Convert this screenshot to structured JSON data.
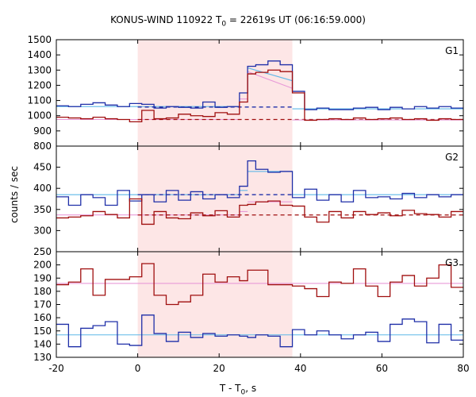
{
  "chart_data": {
    "title": "KONUS-WIND 110922 T0 = 22619s UT (06:16:59.000)",
    "title_parts": {
      "prefix": "KONUS-WIND 110922 T",
      "sub": "0",
      "suffix": " = 22619s UT (06:16:59.000)"
    },
    "xlabel": "T - T0, s",
    "xlabel_parts": {
      "prefix": "T - T",
      "sub": "0",
      "suffix": ", s"
    },
    "ylabel": "counts / sec",
    "type": "line",
    "xlim": [
      -20,
      80
    ],
    "x_ticks": [
      -20,
      0,
      20,
      40,
      60,
      80
    ],
    "highlight_interval": [
      0,
      38
    ],
    "colors": {
      "highlight": "#fde6e6",
      "blue_step": "#1f2fa8",
      "red_step": "#a00f0f",
      "cyan_fit": "#5fb8e8",
      "pink_fit": "#e89ad8",
      "blue_dashed": "#1f2fa8",
      "red_dashed": "#a00f0f"
    },
    "panels": [
      {
        "id": "G1",
        "label": "G1",
        "ylim": [
          800,
          1500
        ],
        "yticks": [
          800,
          900,
          1000,
          1100,
          1200,
          1300,
          1400,
          1500
        ],
        "bin_edges": [
          -20,
          -17,
          -14,
          -11,
          -8,
          -5,
          -2,
          1,
          4,
          7,
          10,
          13,
          16,
          19,
          22,
          25,
          27,
          29,
          32,
          35,
          38,
          41,
          44,
          47,
          50,
          53,
          56,
          59,
          62,
          65,
          68,
          71,
          74,
          77,
          80
        ],
        "series": [
          {
            "name": "",
            "color_key": "blue_step",
            "values": [
              1065,
              1060,
              1075,
              1085,
              1070,
              1060,
              1080,
              1075,
              1050,
              1060,
              1055,
              1050,
              1090,
              1055,
              1060,
              1150,
              1325,
              1335,
              1360,
              1335,
              1160,
              1040,
              1050,
              1040,
              1040,
              1050,
              1055,
              1040,
              1055,
              1045,
              1060,
              1050,
              1060,
              1050
            ]
          },
          {
            "name": "",
            "color_key": "red_step",
            "values": [
              990,
              985,
              980,
              990,
              980,
              975,
              960,
              1035,
              980,
              985,
              1010,
              1000,
              995,
              1020,
              1010,
              1090,
              1275,
              1285,
              1300,
              1290,
              1150,
              970,
              975,
              980,
              975,
              985,
              975,
              980,
              985,
              975,
              980,
              970,
              980,
              975
            ]
          }
        ],
        "fits": [
          {
            "color_key": "cyan_fit",
            "dashed": false,
            "segments": [
              [
                -20,
                1060,
                25,
                1060
              ],
              [
                25,
                1150,
                27,
                1150
              ],
              [
                27,
                1315,
                38,
                1230
              ]
            ]
          },
          {
            "color_key": "pink_fit",
            "dashed": false,
            "segments": [
              [
                -20,
                975,
                25,
                975
              ],
              [
                25,
                1110,
                27,
                1110
              ],
              [
                27,
                1290,
                38,
                1180
              ]
            ]
          },
          {
            "color_key": "blue_dashed",
            "dashed": true,
            "segments": [
              [
                0,
                1057,
                38,
                1057
              ]
            ]
          },
          {
            "color_key": "red_dashed",
            "dashed": true,
            "segments": [
              [
                0,
                975,
                80,
                975
              ]
            ]
          },
          {
            "color_key": "cyan_fit",
            "dashed": false,
            "segments": [
              [
                38,
                1045,
                80,
                1045
              ]
            ]
          },
          {
            "color_key": "pink_fit",
            "dashed": false,
            "segments": [
              [
                38,
                972,
                80,
                972
              ]
            ]
          }
        ]
      },
      {
        "id": "G2",
        "label": "G2",
        "ylim": [
          250,
          500
        ],
        "yticks": [
          250,
          300,
          350,
          400,
          450
        ],
        "bin_edges": [
          -20,
          -17,
          -14,
          -11,
          -8,
          -5,
          -2,
          1,
          4,
          7,
          10,
          13,
          16,
          19,
          22,
          25,
          27,
          29,
          32,
          35,
          38,
          41,
          44,
          47,
          50,
          53,
          56,
          59,
          62,
          65,
          68,
          71,
          74,
          77,
          80
        ],
        "series": [
          {
            "name": "",
            "color_key": "blue_step",
            "values": [
              380,
              360,
              385,
              378,
              360,
              395,
              370,
              385,
              368,
              395,
              372,
              392,
              375,
              385,
              378,
              405,
              465,
              445,
              438,
              440,
              378,
              398,
              372,
              385,
              368,
              395,
              378,
              380,
              375,
              388,
              378,
              385,
              380,
              385
            ]
          },
          {
            "name": "",
            "color_key": "red_step",
            "values": [
              330,
              332,
              335,
              345,
              338,
              330,
              375,
              315,
              345,
              330,
              328,
              342,
              335,
              347,
              332,
              360,
              362,
              368,
              370,
              360,
              358,
              332,
              320,
              345,
              330,
              345,
              338,
              342,
              335,
              348,
              340,
              338,
              332,
              345
            ]
          }
        ],
        "fits": [
          {
            "color_key": "cyan_fit",
            "dashed": false,
            "segments": [
              [
                -20,
                385,
                25,
                385
              ],
              [
                25,
                395,
                27,
                395
              ],
              [
                27,
                440,
                38,
                440
              ]
            ]
          },
          {
            "color_key": "pink_fit",
            "dashed": false,
            "segments": [
              [
                -20,
                337,
                25,
                337
              ],
              [
                25,
                345,
                27,
                345
              ],
              [
                27,
                368,
                38,
                368
              ]
            ]
          },
          {
            "color_key": "blue_dashed",
            "dashed": true,
            "segments": [
              [
                0,
                385,
                38,
                385
              ]
            ]
          },
          {
            "color_key": "red_dashed",
            "dashed": true,
            "segments": [
              [
                0,
                337,
                80,
                337
              ]
            ]
          },
          {
            "color_key": "cyan_fit",
            "dashed": false,
            "segments": [
              [
                38,
                385,
                80,
                385
              ]
            ]
          }
        ]
      },
      {
        "id": "G3",
        "label": "G3",
        "ylim": [
          130,
          210
        ],
        "yticks": [
          130,
          140,
          150,
          160,
          170,
          180,
          190,
          200
        ],
        "bin_edges": [
          -20,
          -17,
          -14,
          -11,
          -8,
          -5,
          -2,
          1,
          4,
          7,
          10,
          13,
          16,
          19,
          22,
          25,
          27,
          29,
          32,
          35,
          38,
          41,
          44,
          47,
          50,
          53,
          56,
          59,
          62,
          65,
          68,
          71,
          74,
          77,
          80
        ],
        "series": [
          {
            "name": "",
            "color_key": "blue_step",
            "values": [
              155,
              138,
              152,
              154,
              157,
              140,
              139,
              162,
              148,
              142,
              149,
              145,
              148,
              146,
              147,
              146,
              145,
              147,
              146,
              138,
              151,
              147,
              150,
              147,
              144,
              147,
              149,
              142,
              155,
              159,
              157,
              141,
              155,
              143
            ]
          },
          {
            "name": "",
            "color_key": "red_step",
            "values": [
              185,
              187,
              197,
              177,
              189,
              189,
              191,
              201,
              177,
              170,
              172,
              177,
              193,
              187,
              191,
              188,
              196,
              196,
              185,
              185,
              184,
              182,
              176,
              187,
              186,
              197,
              184,
              176,
              187,
              192,
              184,
              190,
              200,
              183
            ]
          }
        ],
        "fits": [
          {
            "color_key": "cyan_fit",
            "dashed": false,
            "segments": [
              [
                -20,
                147,
                80,
                147
              ]
            ]
          },
          {
            "color_key": "pink_fit",
            "dashed": false,
            "segments": [
              [
                -20,
                186,
                80,
                186
              ]
            ]
          }
        ]
      }
    ]
  }
}
